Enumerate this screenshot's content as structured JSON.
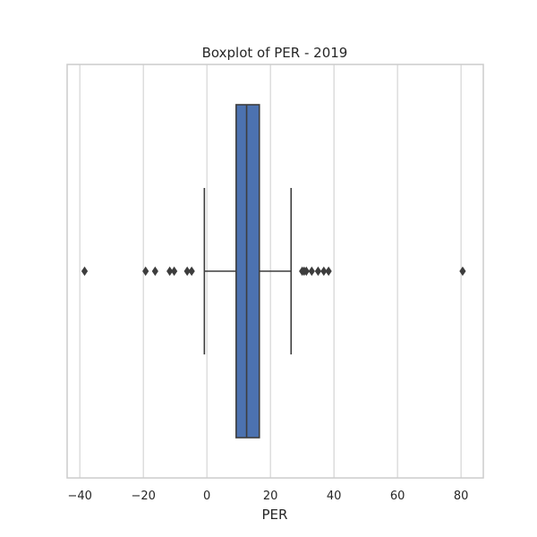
{
  "chart_data": {
    "type": "boxplot",
    "orientation": "horizontal",
    "title": "Boxplot of PER - 2019",
    "xlabel": "PER",
    "ylabel": "",
    "xlim": [
      -44,
      87
    ],
    "xticks": [
      -40,
      -20,
      0,
      20,
      40,
      60,
      80
    ],
    "xtick_labels": [
      "−40",
      "−20",
      "0",
      "20",
      "40",
      "60",
      "80"
    ],
    "grid": "vertical",
    "box": {
      "whisker_low": -0.8,
      "q1": 9.2,
      "median": 12.5,
      "q3": 16.5,
      "whisker_high": 26.5
    },
    "outliers": [
      -38.5,
      -19.3,
      -16.3,
      -11.7,
      -10.3,
      -6.2,
      -4.8,
      30.0,
      30.6,
      31.3,
      33.0,
      35.0,
      36.8,
      38.3,
      80.5
    ],
    "colors": {
      "box_fill": "#4c72b0",
      "line": "#3d3d3d",
      "grid": "#d5d5d5",
      "frame": "#cccccc"
    }
  }
}
